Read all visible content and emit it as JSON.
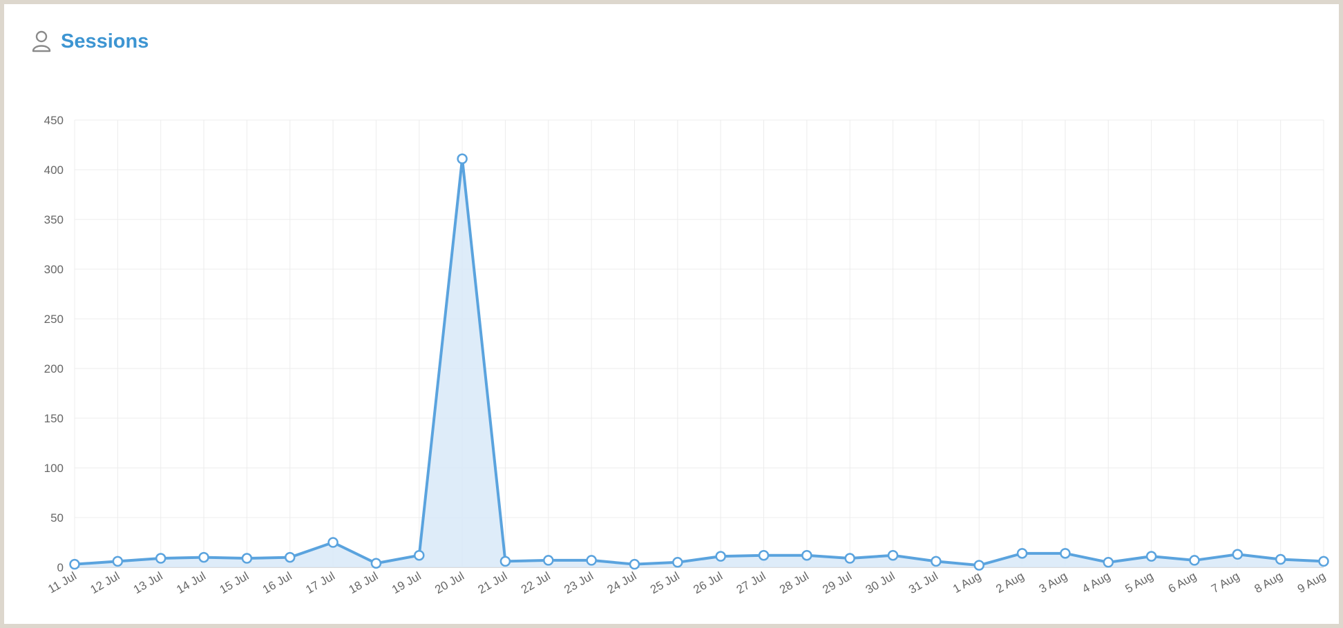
{
  "header": {
    "title": "Sessions",
    "icon": "user-icon"
  },
  "colors": {
    "accent": "#3d95d2",
    "line": "#5aa3de",
    "fill": "#d8e9f8",
    "grid": "#ececec"
  },
  "chart_data": {
    "type": "area",
    "title": "Sessions",
    "xlabel": "",
    "ylabel": "",
    "ylim": [
      0,
      450
    ],
    "yticks": [
      0,
      50,
      100,
      150,
      200,
      250,
      300,
      350,
      400,
      450
    ],
    "grid": true,
    "legend": "none",
    "categories": [
      "11 Jul",
      "12 Jul",
      "13 Jul",
      "14 Jul",
      "15 Jul",
      "16 Jul",
      "17 Jul",
      "18 Jul",
      "19 Jul",
      "20 Jul",
      "21 Jul",
      "22 Jul",
      "23 Jul",
      "24 Jul",
      "25 Jul",
      "26 Jul",
      "27 Jul",
      "28 Jul",
      "29 Jul",
      "30 Jul",
      "31 Jul",
      "1 Aug",
      "2 Aug",
      "3 Aug",
      "4 Aug",
      "5 Aug",
      "6 Aug",
      "7 Aug",
      "8 Aug",
      "9 Aug"
    ],
    "series": [
      {
        "values": [
          3,
          6,
          9,
          10,
          9,
          10,
          25,
          4,
          12,
          411,
          6,
          7,
          7,
          3,
          5,
          11,
          12,
          12,
          9,
          12,
          6,
          2,
          14,
          14,
          5,
          11,
          7,
          13,
          8,
          6
        ]
      }
    ]
  }
}
